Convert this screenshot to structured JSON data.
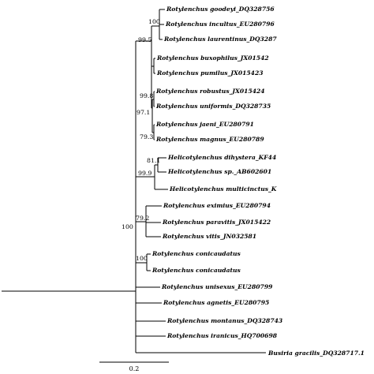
{
  "tree": {
    "taxa": [
      "Rotylenchus goodeyi_DQ328756",
      "Rotylenchus incultus_EU280796",
      "Rotylenchus laurentinus_DQ3287",
      "Rotylenchus buxophilus_JX01542",
      "Rotylenchus pumilus_JX015423",
      "Rotylenchus robustus_JX015424",
      "Rotylenchus uniformis_DQ328735",
      "Rotylenchus jaeni_EU280791",
      "Rotylenchus magnus_EU280789",
      "Helicotylenchus dihystera_KF44",
      "Helicotylenchus sp._AB602601",
      "Helicotylenchus multicinctus_K",
      "Rotylenchus eximius_EU280794",
      "Rotylenchus paravitis_JX015422",
      "Rotylenchus vitis_JN032581",
      "Rotylenchus conicaudatus",
      "Rotylenchus conicaudatus",
      "Rotylenchus unisexus_EU280799",
      "Rotylenchus agnetis_EU280795",
      "Rotylenchus montanus_DQ328743",
      "Rotylenchus iranicus_HQ700698",
      "Busiria gracilis_DQ328717.1"
    ],
    "support": [
      "100",
      "99.5",
      "99.8",
      "97.1",
      "79.3",
      "81.1",
      "99.9",
      "79.2",
      "100",
      "100"
    ],
    "scale_bar": {
      "value": "0.2"
    },
    "colors": {
      "line": "#000000",
      "background": "#ffffff"
    }
  }
}
